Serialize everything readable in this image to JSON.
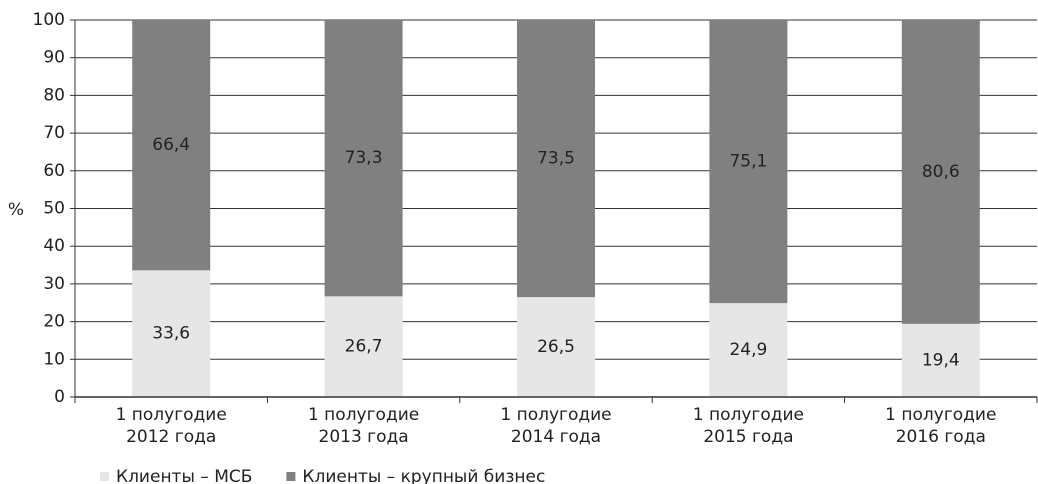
{
  "chart_data": {
    "type": "stacked_bar",
    "ylabel": "%",
    "categories": [
      [
        "1 полугодие",
        "2012 года"
      ],
      [
        "1 полугодие",
        "2013 года"
      ],
      [
        "1 полугодие",
        "2014 года"
      ],
      [
        "1 полугодие",
        "2015 года"
      ],
      [
        "1 полугодие",
        "2016 года"
      ]
    ],
    "series": [
      {
        "name": "Клиенты – МСБ",
        "color": "#e6e6e6",
        "values": [
          33.6,
          26.7,
          26.5,
          24.9,
          19.4
        ],
        "value_labels": [
          "33,6",
          "26,7",
          "26,5",
          "24,9",
          "19,4"
        ]
      },
      {
        "name": "Клиенты – крупный бизнес",
        "color": "#808080",
        "values": [
          66.4,
          73.3,
          73.5,
          75.1,
          80.6
        ],
        "value_labels": [
          "66,4",
          "73,3",
          "73,5",
          "75,1",
          "80,6"
        ]
      }
    ],
    "ylim": [
      0,
      100
    ],
    "yticks": [
      0,
      10,
      20,
      30,
      40,
      50,
      60,
      70,
      80,
      90,
      100
    ],
    "grid": true,
    "legend": "bottom-left"
  }
}
